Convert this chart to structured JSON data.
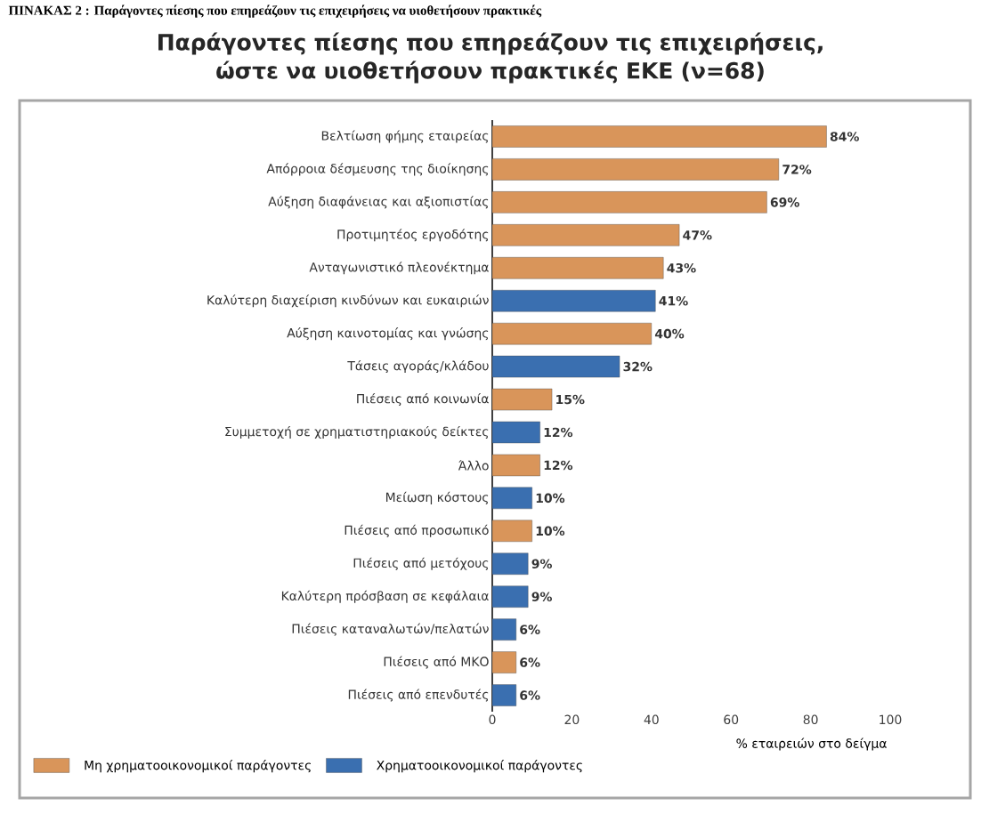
{
  "chart_data": {
    "type": "bar",
    "orientation": "horizontal",
    "title": "Παράγοντες πίεσης που επηρεάζουν τις επιχειρήσεις, ώστε να υιοθετήσουν πρακτικές ΕΚΕ (ν=68)",
    "annotations": [
      "ΠΙΝΑΚΑΣ 2 : Παράγοντες πίεσης που επηρεάζουν τις επιχειρήσεις να υιοθετήσουν πρακτικές"
    ],
    "xlabel": "% εταιρειών στο δείγμα",
    "categories": [
      "Βελτίωση φήμης εταιρείας",
      "Απόρροια δέσμευσης της διοίκησης",
      "Αύξηση διαφάνειας και αξιοπιστίας",
      "Προτιμητέος εργοδότης",
      "Ανταγωνιστικό πλεονέκτημα",
      "Καλύτερη διαχείριση κινδύνων και ευκαιριών",
      "Αύξηση καινοτομίας και γνώσης",
      "Τάσεις αγοράς/κλάδου",
      "Πιέσεις από κοινωνία",
      "Συμμετοχή σε χρηματιστηριακούς δείκτες",
      "Άλλο",
      "Μείωση κόστους",
      "Πιέσεις από προσωπικό",
      "Πιέσεις από μετόχους",
      "Καλύτερη πρόσβαση σε κεφάλαια",
      "Πιέσεις καταναλωτών/πελατών",
      "Πιέσεις από ΜΚΟ",
      "Πιέσεις από επενδυτές"
    ],
    "series": [
      {
        "name": "Μη χρηματοοικονομικοί παράγοντες",
        "color": "#d9955a",
        "values": [
          84,
          72,
          69,
          47,
          43,
          null,
          40,
          null,
          15,
          null,
          12,
          null,
          10,
          null,
          null,
          null,
          6,
          null
        ],
        "value_labels": [
          "84%",
          "72%",
          "69%",
          "47%",
          "43%",
          null,
          "40%",
          null,
          "15%",
          null,
          "12%",
          null,
          "10%",
          null,
          null,
          null,
          "6%",
          null
        ]
      },
      {
        "name": "Χρηματοοικονομικοί παράγοντες",
        "color": "#3a6fb0",
        "values": [
          null,
          null,
          null,
          null,
          null,
          41,
          null,
          32,
          null,
          12,
          null,
          10,
          null,
          9,
          9,
          6,
          null,
          6
        ],
        "value_labels": [
          null,
          null,
          null,
          null,
          null,
          "41%",
          null,
          "32%",
          null,
          "12%",
          null,
          "10%",
          null,
          "9%",
          "9%",
          "6%",
          null,
          "6%"
        ]
      }
    ],
    "xlim": [
      0,
      100
    ],
    "xticks": [
      0,
      20,
      40,
      60,
      80,
      100
    ],
    "legend": "bottom"
  }
}
